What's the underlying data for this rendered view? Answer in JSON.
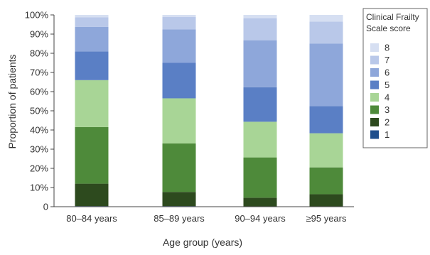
{
  "chart_data": {
    "type": "bar",
    "stacked": true,
    "categories": [
      "80–84 years",
      "85–89 years",
      "90–94 years",
      "≥95 years"
    ],
    "xlabel": "Age group (years)",
    "ylabel": "Proportion of patients",
    "ylim": [
      0,
      100
    ],
    "yticks": [
      "0",
      "10%",
      "20%",
      "30%",
      "40%",
      "50%",
      "60%",
      "70%",
      "80%",
      "90%",
      "100%"
    ],
    "grid": false,
    "legend": {
      "title_lines": [
        "Clinical Frailty",
        "Scale score"
      ],
      "position": "right",
      "order": [
        "8",
        "7",
        "6",
        "5",
        "4",
        "3",
        "2",
        "1"
      ]
    },
    "series": [
      {
        "name": "1",
        "color": "#1f4e8c",
        "values": [
          0.3,
          0.3,
          0.2,
          0.2
        ]
      },
      {
        "name": "2",
        "color": "#2d4a1e",
        "values": [
          11.7,
          7.4,
          4.5,
          6.3
        ]
      },
      {
        "name": "3",
        "color": "#4e8a3a",
        "values": [
          29.5,
          25.3,
          21.0,
          14.0
        ]
      },
      {
        "name": "4",
        "color": "#a8d596",
        "values": [
          24.5,
          23.5,
          18.6,
          17.8
        ]
      },
      {
        "name": "5",
        "color": "#5a7fc5",
        "values": [
          15.0,
          18.5,
          18.0,
          14.2
        ]
      },
      {
        "name": "6",
        "color": "#8ea7da",
        "values": [
          12.8,
          17.5,
          24.5,
          32.5
        ]
      },
      {
        "name": "7",
        "color": "#b9c8e9",
        "values": [
          5.0,
          6.5,
          11.5,
          11.5
        ]
      },
      {
        "name": "8",
        "color": "#d6dff2",
        "values": [
          1.2,
          1.0,
          1.7,
          3.5
        ]
      }
    ]
  }
}
